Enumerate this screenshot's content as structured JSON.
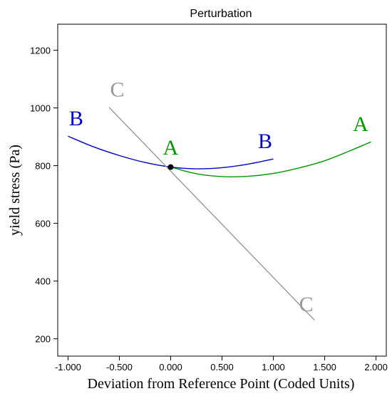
{
  "chart_data": {
    "type": "line",
    "title": "Perturbation",
    "xlabel": "Deviation from Reference Point (Coded Units)",
    "ylabel": "yield stress (Pa)",
    "xlim": [
      -1.1,
      2.1
    ],
    "ylim": [
      140,
      1290
    ],
    "xticks": [
      -1.0,
      -0.5,
      0.0,
      0.5,
      1.0,
      1.5,
      2.0
    ],
    "xtick_labels": [
      "-1.000",
      "-0.500",
      "0.000",
      "0.500",
      "1.000",
      "1.500",
      "2.000"
    ],
    "yticks": [
      200,
      400,
      600,
      800,
      1000,
      1200
    ],
    "ytick_labels": [
      "200",
      "400",
      "600",
      "800",
      "1000",
      "1200"
    ],
    "grid": false,
    "series": [
      {
        "name": "A",
        "color": "#009900",
        "x": [
          0.0,
          0.25,
          0.5,
          0.75,
          1.0,
          1.25,
          1.5,
          1.75,
          1.95
        ],
        "y": [
          795,
          772,
          762,
          763,
          773,
          792,
          817,
          852,
          882
        ],
        "labels": [
          {
            "text": "A",
            "x": 0.0,
            "y": 838
          },
          {
            "text": "A",
            "x": 1.85,
            "y": 920
          }
        ]
      },
      {
        "name": "B",
        "color": "#0000cc",
        "x": [
          -1.0,
          -0.75,
          -0.5,
          -0.25,
          0.0,
          0.25,
          0.5,
          0.75,
          1.0
        ],
        "y": [
          902,
          865,
          835,
          811,
          795,
          789,
          793,
          805,
          823
        ],
        "labels": [
          {
            "text": "B",
            "x": -0.92,
            "y": 940
          },
          {
            "text": "B",
            "x": 0.92,
            "y": 860
          }
        ]
      },
      {
        "name": "C",
        "color": "#999999",
        "x": [
          -0.6,
          1.4
        ],
        "y": [
          1002,
          265
        ],
        "labels": [
          {
            "text": "C",
            "x": -0.52,
            "y": 1040
          },
          {
            "text": "C",
            "x": 1.32,
            "y": 295
          }
        ]
      }
    ],
    "reference_point": {
      "x": 0.0,
      "y": 795
    }
  }
}
